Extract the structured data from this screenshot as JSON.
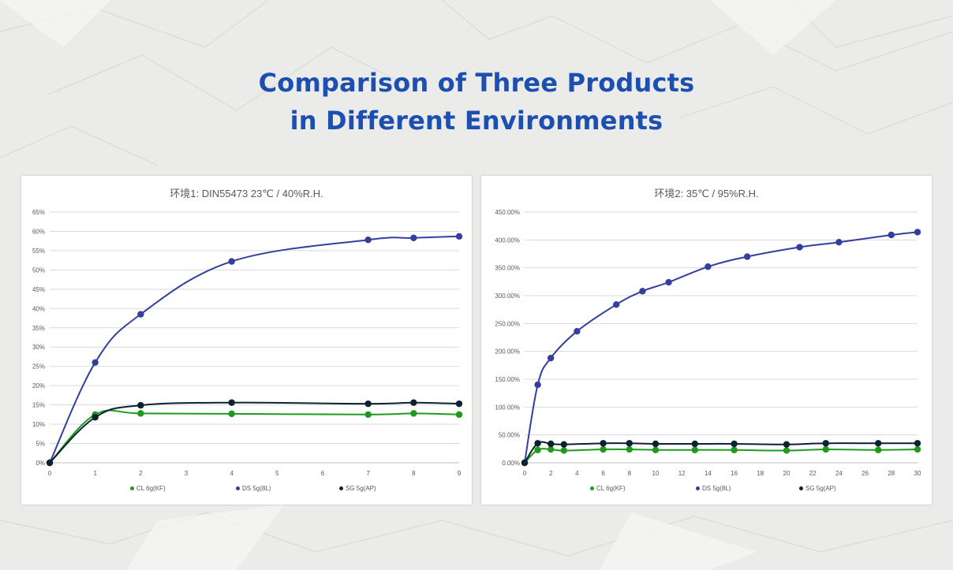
{
  "header": {
    "title_line1": "Comparison of Three Products",
    "title_line2": "in Different Environments"
  },
  "colors": {
    "title": "#1d4fb0",
    "CL": "#1e9a1e",
    "DS": "#333f9e",
    "SG": "#0b2230",
    "grid": "#d9d9d9"
  },
  "chart_data": [
    {
      "type": "line",
      "title": "环境1:  DIN55473 23℃ / 40%R.H.",
      "xlabel": "",
      "ylabel": "",
      "xlim": [
        0,
        9
      ],
      "ylim": [
        0,
        65
      ],
      "x_ticks": [
        "0",
        "1",
        "2",
        "3",
        "4",
        "5",
        "6",
        "7",
        "8",
        "9"
      ],
      "y_ticks": [
        "0%",
        "5%",
        "10%",
        "15%",
        "20%",
        "25%",
        "30%",
        "35%",
        "40%",
        "45%",
        "50%",
        "55%",
        "60%",
        "65%"
      ],
      "grid": true,
      "legend": "bottom",
      "series": [
        {
          "name": "CL 6g(KF)",
          "x": [
            0,
            1,
            2,
            4,
            7,
            8,
            9
          ],
          "y": [
            0,
            12.5,
            12.8,
            12.7,
            12.5,
            12.8,
            12.5
          ]
        },
        {
          "name": "DS 5g(8L)",
          "x": [
            0,
            1,
            2,
            4,
            7,
            8,
            9
          ],
          "y": [
            0,
            26,
            38.5,
            52.2,
            57.8,
            58.3,
            58.7
          ]
        },
        {
          "name": "SG 5g(AP)",
          "x": [
            0,
            1,
            2,
            4,
            7,
            8,
            9
          ],
          "y": [
            0,
            11.8,
            14.9,
            15.6,
            15.3,
            15.6,
            15.3
          ]
        }
      ]
    },
    {
      "type": "line",
      "title": "环境2:  35℃ / 95%R.H.",
      "xlabel": "",
      "ylabel": "",
      "xlim": [
        0,
        30
      ],
      "ylim": [
        0,
        450
      ],
      "x_ticks": [
        "0",
        "2",
        "4",
        "6",
        "8",
        "10",
        "12",
        "14",
        "16",
        "18",
        "20",
        "22",
        "24",
        "26",
        "28",
        "30"
      ],
      "y_ticks": [
        "0.00%",
        "50.00%",
        "100.00%",
        "150.00%",
        "200.00%",
        "250.00%",
        "300.00%",
        "350.00%",
        "400.00%",
        "450.00%"
      ],
      "grid": true,
      "legend": "bottom",
      "series": [
        {
          "name": "CL 6g(KF)",
          "x": [
            0,
            1,
            2,
            3,
            6,
            8,
            10,
            13,
            16,
            20,
            23,
            27,
            30
          ],
          "y": [
            0,
            23,
            24,
            22,
            24,
            24,
            23,
            23,
            23,
            22,
            24,
            23,
            24
          ]
        },
        {
          "name": "DS 5g(8L)",
          "x": [
            0,
            1,
            2,
            4,
            7,
            9,
            11,
            14,
            17,
            21,
            24,
            28,
            30
          ],
          "y": [
            0,
            140,
            188,
            236,
            284,
            308,
            324,
            352,
            370,
            387,
            396,
            409,
            414
          ]
        },
        {
          "name": "SG 5g(AP)",
          "x": [
            0,
            1,
            2,
            3,
            6,
            8,
            10,
            13,
            16,
            20,
            23,
            27,
            30
          ],
          "y": [
            0,
            35,
            34,
            33,
            35,
            35,
            34,
            34,
            34,
            33,
            35,
            35,
            35
          ]
        }
      ]
    }
  ]
}
